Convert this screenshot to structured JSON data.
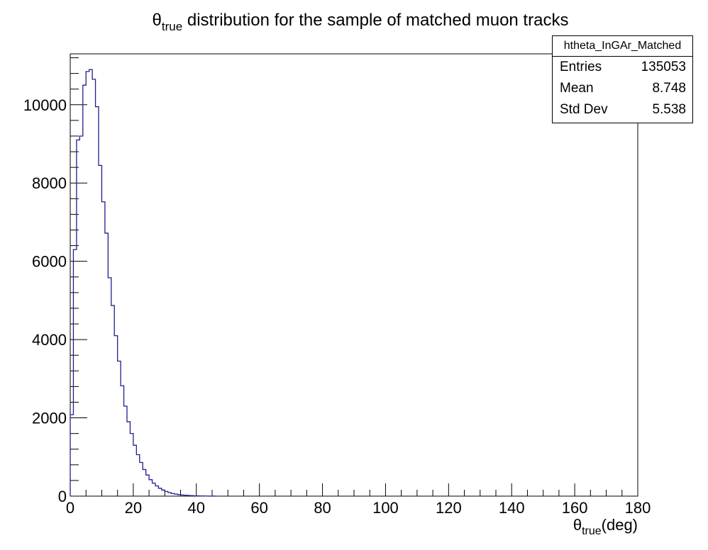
{
  "chart_data": {
    "type": "histogram",
    "title": {
      "symbol": "θ",
      "subscript": "true",
      "rest": " distribution for the sample of matched muon tracks"
    },
    "xlabel": {
      "symbol": "θ",
      "subscript": "true",
      "rest": "(deg)"
    },
    "ylabel": "",
    "xlim": [
      0,
      180
    ],
    "ylim": [
      0,
      11300
    ],
    "xticks": [
      0,
      20,
      40,
      60,
      80,
      100,
      120,
      140,
      160,
      180
    ],
    "xtick_labels": [
      "0",
      "20",
      "40",
      "60",
      "80",
      "100",
      "120",
      "140",
      "160",
      "180"
    ],
    "yticks": [
      0,
      2000,
      4000,
      6000,
      8000,
      10000
    ],
    "ytick_labels": [
      "0",
      "2000",
      "4000",
      "6000",
      "8000",
      "10000"
    ],
    "grid": false,
    "line_color": "#1f1f8f",
    "bin_width": 1,
    "series": [
      {
        "values": [
          2080,
          6300,
          9100,
          9200,
          10500,
          10850,
          10900,
          10650,
          9950,
          8450,
          7520,
          6720,
          5580,
          4870,
          4100,
          3450,
          2820,
          2300,
          1900,
          1600,
          1300,
          1060,
          860,
          680,
          540,
          420,
          330,
          260,
          200,
          155,
          120,
          90,
          68,
          52,
          40,
          30,
          22,
          17,
          12,
          9,
          6,
          4,
          3,
          2,
          1,
          1
        ]
      }
    ],
    "stats": {
      "name": "htheta_InGAr_Matched",
      "entries_label": "Entries",
      "entries_value": "135053",
      "mean_label": "Mean",
      "mean_value": "8.748",
      "std_label": "Std Dev",
      "std_value": "5.538"
    }
  }
}
